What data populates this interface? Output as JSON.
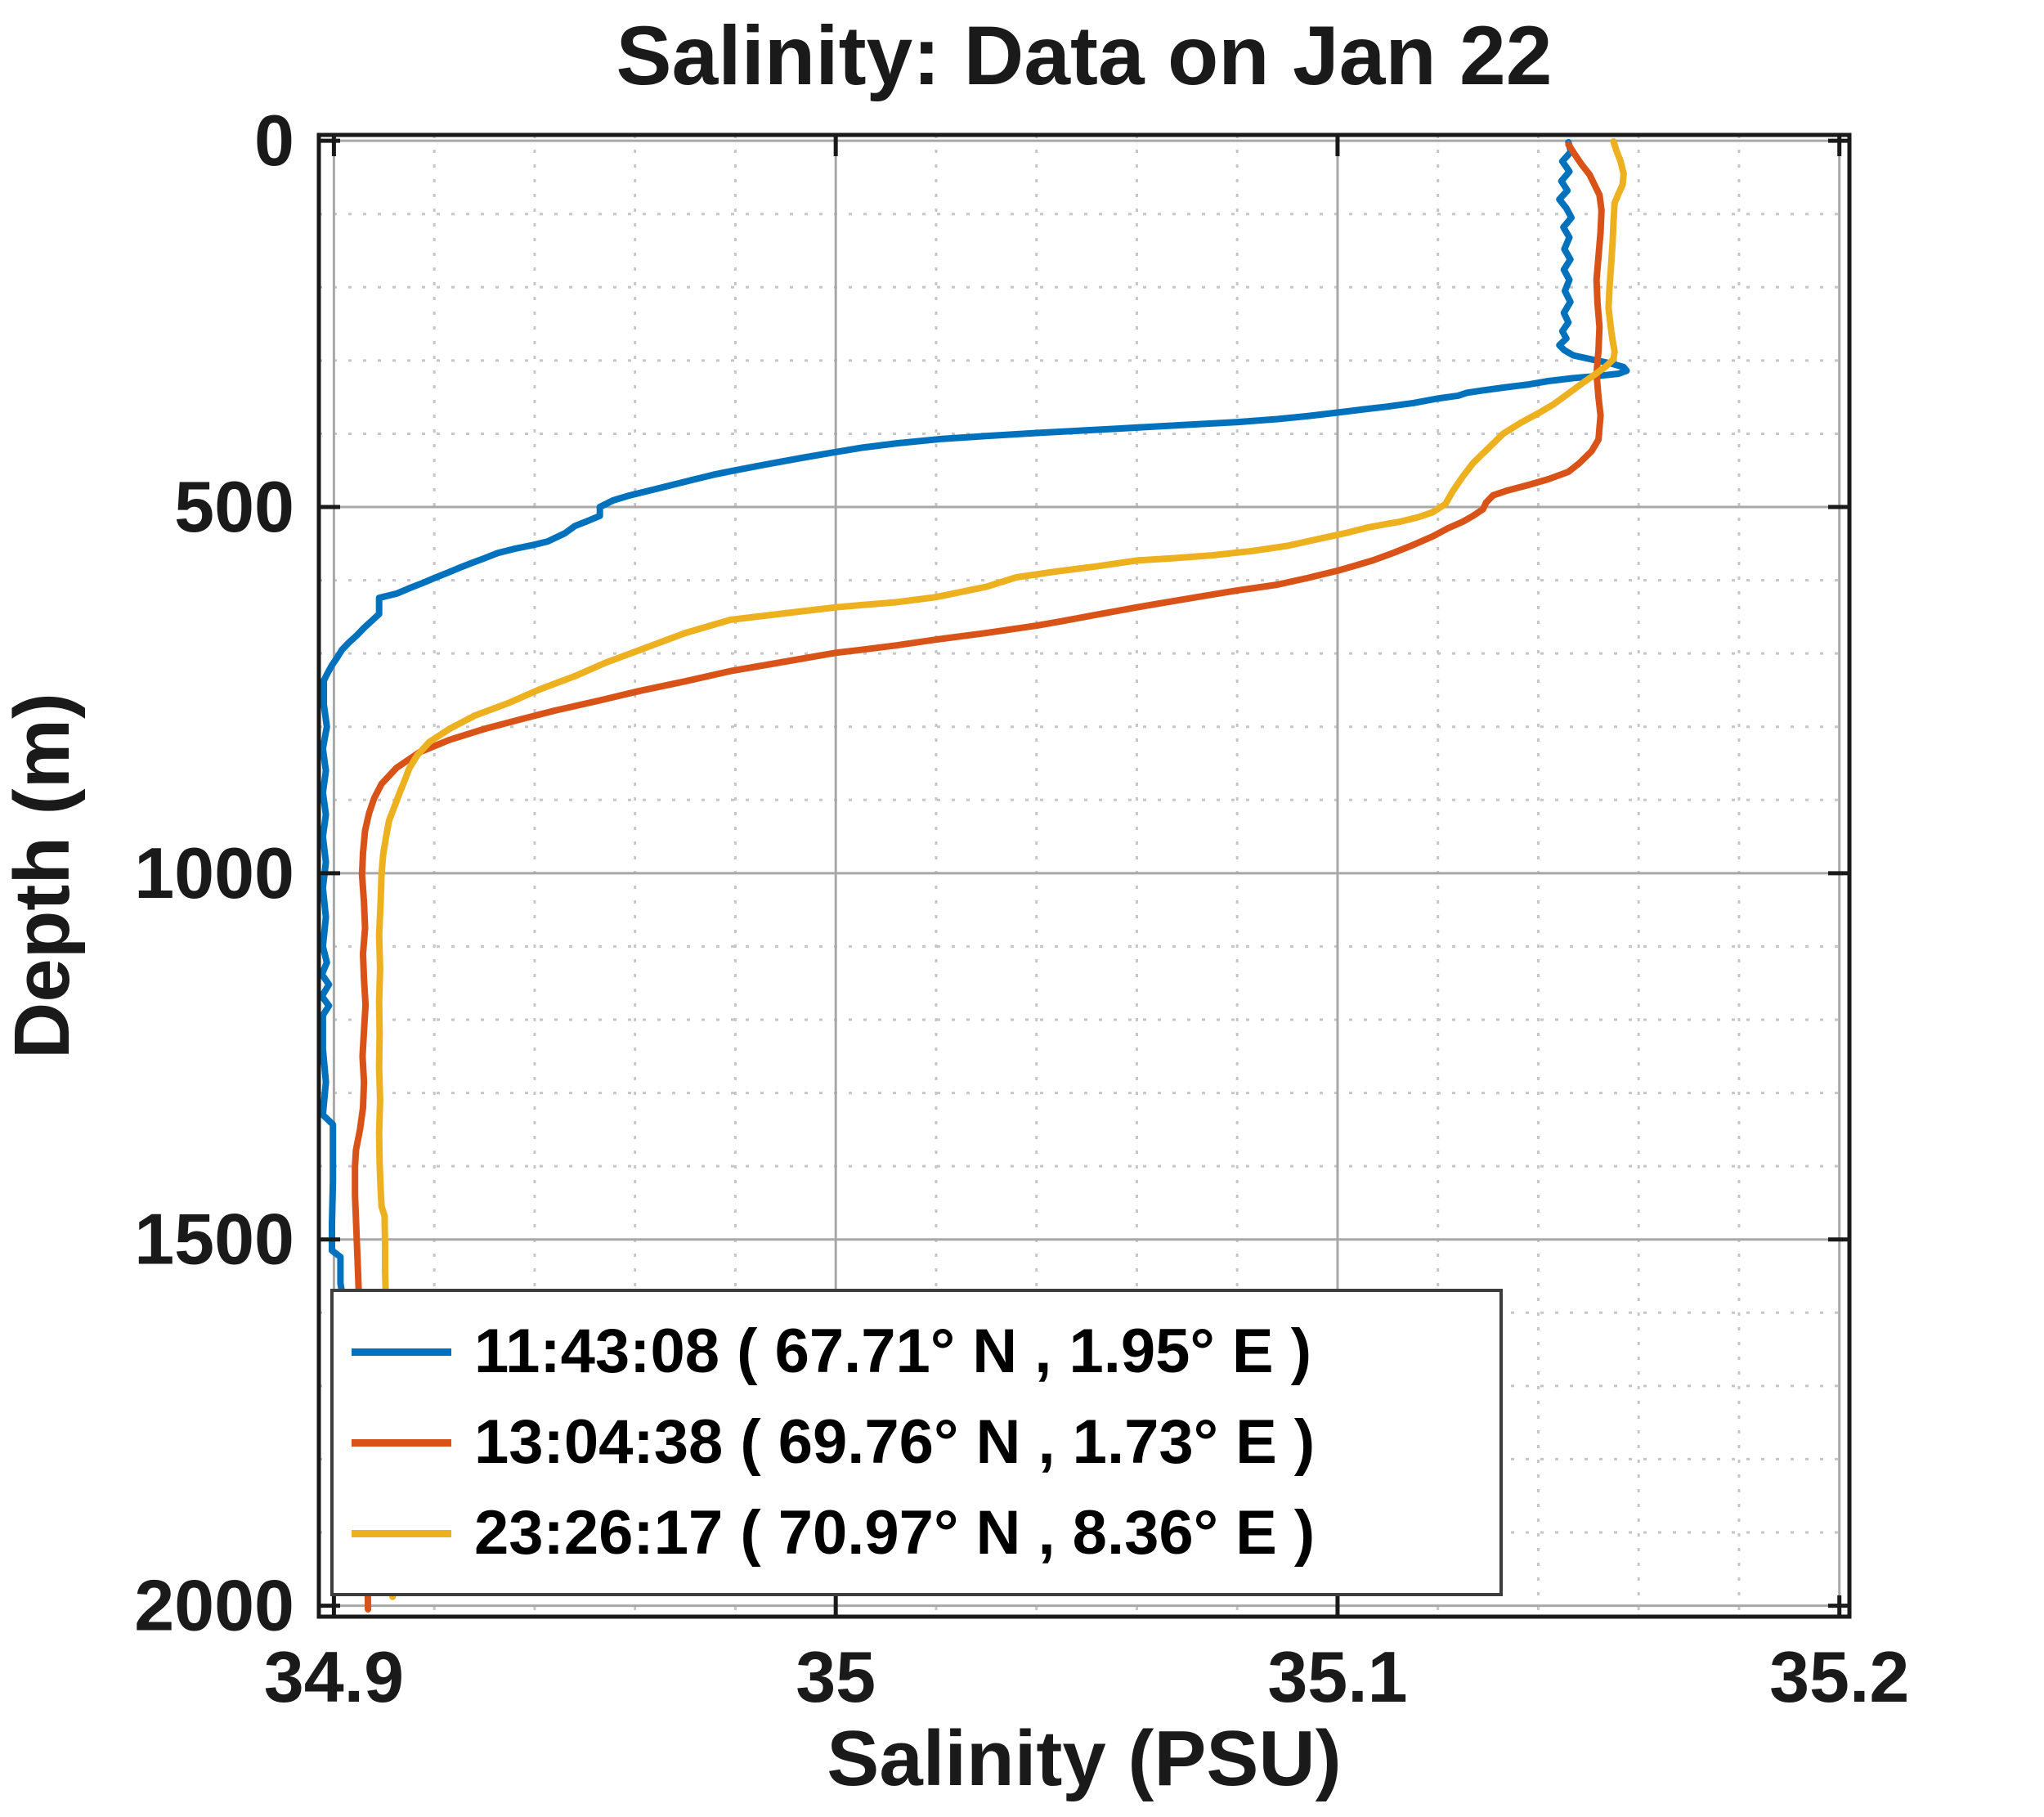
{
  "figure": {
    "title": "Salinity: Data on Jan 22",
    "xlabel": "Salinity (PSU)",
    "ylabel": "Depth (m)",
    "background": "#ffffff"
  },
  "chart_data": {
    "type": "line",
    "title": "Salinity: Data on Jan 22",
    "xlabel": "Salinity (PSU)",
    "ylabel": "Depth (m)",
    "x_ticks": [
      34.9,
      35.0,
      35.1,
      35.2
    ],
    "x_tick_labels": [
      "34.9",
      "35",
      "35.1",
      "35.2"
    ],
    "y_ticks": [
      0,
      500,
      1000,
      1500,
      2000
    ],
    "y_tick_labels": [
      "0",
      "500",
      "1000",
      "1500",
      "2000"
    ],
    "xlim": [
      34.897,
      35.202
    ],
    "ylim": [
      -8,
      2015
    ],
    "y_axis_note": "depth axis reversed: 0 at top, 2000 at bottom",
    "grid": {
      "major": "solid",
      "minor": "dotted",
      "x_minor_step": 0.02,
      "y_minor_step": 100
    },
    "legend_position": "southwest",
    "colors": {
      "axis": "#1a1a1a",
      "major_grid": "#a8a8a8",
      "minor_grid": "#c6c6c6",
      "background": "#ffffff"
    },
    "series": [
      {
        "name": "11:43:08 ( 67.71° N , 1.95° E )",
        "color": "#0072BD",
        "points": [
          [
            35.146,
            2
          ],
          [
            35.1465,
            15
          ],
          [
            35.1448,
            28
          ],
          [
            35.1462,
            42
          ],
          [
            35.1446,
            55
          ],
          [
            35.1458,
            68
          ],
          [
            35.1442,
            80
          ],
          [
            35.1456,
            92
          ],
          [
            35.1466,
            105
          ],
          [
            35.145,
            118
          ],
          [
            35.1462,
            132
          ],
          [
            35.1452,
            148
          ],
          [
            35.1464,
            162
          ],
          [
            35.1451,
            176
          ],
          [
            35.1462,
            190
          ],
          [
            35.1453,
            205
          ],
          [
            35.1464,
            220
          ],
          [
            35.1451,
            235
          ],
          [
            35.146,
            248
          ],
          [
            35.1448,
            260
          ],
          [
            35.1456,
            270
          ],
          [
            35.1442,
            279
          ],
          [
            35.1452,
            286
          ],
          [
            35.147,
            293
          ],
          [
            35.151,
            299
          ],
          [
            35.1545,
            304
          ],
          [
            35.157,
            309
          ],
          [
            35.1576,
            314
          ],
          [
            35.156,
            318
          ],
          [
            35.152,
            321
          ],
          [
            35.147,
            324
          ],
          [
            35.142,
            328
          ],
          [
            35.1378,
            333
          ],
          [
            35.133,
            337
          ],
          [
            35.1288,
            341
          ],
          [
            35.1258,
            344
          ],
          [
            35.124,
            348
          ],
          [
            35.1198,
            352
          ],
          [
            35.1152,
            358
          ],
          [
            35.1098,
            363
          ],
          [
            35.1048,
            367
          ],
          [
            35.1,
            371
          ],
          [
            35.094,
            376
          ],
          [
            35.088,
            380
          ],
          [
            35.0802,
            384
          ],
          [
            35.0722,
            387
          ],
          [
            35.064,
            390
          ],
          [
            35.056,
            393
          ],
          [
            35.048,
            396
          ],
          [
            35.04,
            399
          ],
          [
            35.0302,
            403
          ],
          [
            35.0212,
            407
          ],
          [
            35.0122,
            413
          ],
          [
            35.0052,
            419
          ],
          [
            35.0,
            425
          ],
          [
            34.9932,
            433
          ],
          [
            34.986,
            442
          ],
          [
            34.9792,
            451
          ],
          [
            34.9756,
            456
          ],
          [
            34.972,
            462
          ],
          [
            34.9662,
            472
          ],
          [
            34.962,
            479
          ],
          [
            34.959,
            484
          ],
          [
            34.9556,
            491
          ],
          [
            34.953,
            500
          ],
          [
            34.953,
            512
          ],
          [
            34.9506,
            519
          ],
          [
            34.948,
            526
          ],
          [
            34.946,
            536
          ],
          [
            34.9426,
            547
          ],
          [
            34.9396,
            552
          ],
          [
            34.936,
            557
          ],
          [
            34.9326,
            563
          ],
          [
            34.93,
            570
          ],
          [
            34.9276,
            576
          ],
          [
            34.925,
            583
          ],
          [
            34.9226,
            590
          ],
          [
            34.92,
            597
          ],
          [
            34.9176,
            604
          ],
          [
            34.915,
            611
          ],
          [
            34.9126,
            618
          ],
          [
            34.909,
            624
          ],
          [
            34.909,
            646
          ],
          [
            34.9076,
            655
          ],
          [
            34.906,
            665
          ],
          [
            34.9046,
            675
          ],
          [
            34.903,
            685
          ],
          [
            34.9016,
            695
          ],
          [
            34.9006,
            706
          ],
          [
            34.8996,
            716
          ],
          [
            34.8988,
            726
          ],
          [
            34.898,
            737
          ],
          [
            34.898,
            770
          ],
          [
            34.8986,
            800
          ],
          [
            34.8978,
            830
          ],
          [
            34.8984,
            860
          ],
          [
            34.8978,
            890
          ],
          [
            34.8984,
            920
          ],
          [
            34.8978,
            950
          ],
          [
            34.8984,
            985
          ],
          [
            34.8978,
            1020
          ],
          [
            34.8984,
            1060
          ],
          [
            34.8978,
            1100
          ],
          [
            34.8986,
            1122
          ],
          [
            34.8976,
            1138
          ],
          [
            34.899,
            1152
          ],
          [
            34.8976,
            1168
          ],
          [
            34.899,
            1181
          ],
          [
            34.8978,
            1194
          ],
          [
            34.8978,
            1240
          ],
          [
            34.8984,
            1285
          ],
          [
            34.8978,
            1330
          ],
          [
            34.8998,
            1343
          ],
          [
            34.8998,
            1420
          ],
          [
            34.8996,
            1480
          ],
          [
            34.8996,
            1515
          ],
          [
            34.9013,
            1524
          ],
          [
            34.9013,
            1560
          ],
          [
            34.9016,
            1572
          ]
        ]
      },
      {
        "name": "13:04:38 ( 69.76° N , 1.73° E )",
        "color": "#D95319",
        "points": [
          [
            35.146,
            5
          ],
          [
            35.1472,
            18
          ],
          [
            35.1486,
            32
          ],
          [
            35.1502,
            46
          ],
          [
            35.1512,
            60
          ],
          [
            35.1522,
            74
          ],
          [
            35.1526,
            95
          ],
          [
            35.1524,
            125
          ],
          [
            35.152,
            158
          ],
          [
            35.1516,
            190
          ],
          [
            35.1518,
            222
          ],
          [
            35.1522,
            254
          ],
          [
            35.152,
            286
          ],
          [
            35.1516,
            318
          ],
          [
            35.152,
            350
          ],
          [
            35.1524,
            375
          ],
          [
            35.1522,
            392
          ],
          [
            35.152,
            408
          ],
          [
            35.1506,
            424
          ],
          [
            35.1482,
            440
          ],
          [
            35.146,
            452
          ],
          [
            35.142,
            462
          ],
          [
            35.138,
            470
          ],
          [
            35.1336,
            478
          ],
          [
            35.131,
            484
          ],
          [
            35.1296,
            494
          ],
          [
            35.129,
            503
          ],
          [
            35.127,
            512
          ],
          [
            35.125,
            520
          ],
          [
            35.122,
            529
          ],
          [
            35.119,
            540
          ],
          [
            35.115,
            552
          ],
          [
            35.111,
            563
          ],
          [
            35.107,
            573
          ],
          [
            35.103,
            581
          ],
          [
            35.1,
            587
          ],
          [
            35.094,
            597
          ],
          [
            35.088,
            606
          ],
          [
            35.08,
            614
          ],
          [
            35.072,
            623
          ],
          [
            35.065,
            631
          ],
          [
            35.06,
            637
          ],
          [
            35.052,
            647
          ],
          [
            35.045,
            656
          ],
          [
            35.04,
            662
          ],
          [
            35.03,
            672
          ],
          [
            35.02,
            681
          ],
          [
            35.012,
            689
          ],
          [
            35.005,
            695
          ],
          [
            35.0,
            699
          ],
          [
            34.99,
            711
          ],
          [
            34.979,
            724
          ],
          [
            34.97,
            738
          ],
          [
            34.961,
            751
          ],
          [
            34.953,
            764
          ],
          [
            34.944,
            778
          ],
          [
            34.936,
            792
          ],
          [
            34.93,
            803
          ],
          [
            34.923,
            818
          ],
          [
            34.917,
            835
          ],
          [
            34.9125,
            856
          ],
          [
            34.9095,
            878
          ],
          [
            34.908,
            898
          ],
          [
            34.907,
            918
          ],
          [
            34.9062,
            942
          ],
          [
            34.9058,
            972
          ],
          [
            34.9056,
            1002
          ],
          [
            34.906,
            1040
          ],
          [
            34.9062,
            1075
          ],
          [
            34.9058,
            1110
          ],
          [
            34.906,
            1145
          ],
          [
            34.9063,
            1180
          ],
          [
            34.906,
            1215
          ],
          [
            34.9057,
            1250
          ],
          [
            34.906,
            1285
          ],
          [
            34.9058,
            1320
          ],
          [
            34.9052,
            1350
          ],
          [
            34.9044,
            1378
          ],
          [
            34.9042,
            1400
          ],
          [
            34.9042,
            1440
          ],
          [
            34.9045,
            1490
          ],
          [
            34.9048,
            1545
          ],
          [
            34.9052,
            1620
          ],
          [
            34.9058,
            1700
          ],
          [
            34.9062,
            1790
          ],
          [
            34.9065,
            1880
          ],
          [
            34.9067,
            1950
          ],
          [
            34.9068,
            2005
          ]
        ]
      },
      {
        "name": "23:26:17 ( 70.97° N , 8.36° E )",
        "color": "#EDB120",
        "points": [
          [
            35.155,
            1
          ],
          [
            35.1556,
            14
          ],
          [
            35.1564,
            28
          ],
          [
            35.157,
            45
          ],
          [
            35.1568,
            60
          ],
          [
            35.156,
            72
          ],
          [
            35.1552,
            85
          ],
          [
            35.155,
            110
          ],
          [
            35.1548,
            140
          ],
          [
            35.1545,
            170
          ],
          [
            35.1542,
            200
          ],
          [
            35.154,
            228
          ],
          [
            35.1544,
            252
          ],
          [
            35.1548,
            272
          ],
          [
            35.1552,
            288
          ],
          [
            35.155,
            298
          ],
          [
            35.1535,
            308
          ],
          [
            35.1515,
            318
          ],
          [
            35.149,
            330
          ],
          [
            35.146,
            345
          ],
          [
            35.143,
            360
          ],
          [
            35.14,
            372
          ],
          [
            35.1365,
            385
          ],
          [
            35.133,
            400
          ],
          [
            35.13,
            420
          ],
          [
            35.127,
            440
          ],
          [
            35.125,
            458
          ],
          [
            35.123,
            478
          ],
          [
            35.1215,
            496
          ],
          [
            35.119,
            507
          ],
          [
            35.116,
            514
          ],
          [
            35.1125,
            520
          ],
          [
            35.11,
            523
          ],
          [
            35.106,
            528
          ],
          [
            35.102,
            535
          ],
          [
            35.098,
            541
          ],
          [
            35.09,
            553
          ],
          [
            35.083,
            560
          ],
          [
            35.075,
            566
          ],
          [
            35.067,
            570
          ],
          [
            35.06,
            573
          ],
          [
            35.052,
            581
          ],
          [
            35.044,
            588
          ],
          [
            35.036,
            596
          ],
          [
            35.03,
            609
          ],
          [
            35.02,
            623
          ],
          [
            35.012,
            630
          ],
          [
            35.005,
            634
          ],
          [
            35.0,
            637
          ],
          [
            34.99,
            645
          ],
          [
            34.979,
            654
          ],
          [
            34.97,
            672
          ],
          [
            34.961,
            695
          ],
          [
            34.954,
            713
          ],
          [
            34.948,
            731
          ],
          [
            34.941,
            749
          ],
          [
            34.935,
            767
          ],
          [
            34.928,
            785
          ],
          [
            34.923,
            803
          ],
          [
            34.919,
            821
          ],
          [
            34.9166,
            839
          ],
          [
            34.915,
            857
          ],
          [
            34.914,
            875
          ],
          [
            34.913,
            892
          ],
          [
            34.912,
            910
          ],
          [
            34.911,
            928
          ],
          [
            34.9104,
            950
          ],
          [
            34.9098,
            975
          ],
          [
            34.9095,
            1000
          ],
          [
            34.9093,
            1040
          ],
          [
            34.909,
            1085
          ],
          [
            34.9092,
            1130
          ],
          [
            34.909,
            1175
          ],
          [
            34.9091,
            1220
          ],
          [
            34.909,
            1265
          ],
          [
            34.9092,
            1310
          ],
          [
            34.909,
            1355
          ],
          [
            34.9091,
            1395
          ],
          [
            34.9093,
            1430
          ],
          [
            34.9095,
            1455
          ],
          [
            34.9101,
            1468
          ],
          [
            34.9102,
            1510
          ],
          [
            34.9102,
            1545
          ],
          [
            34.9105,
            1620
          ],
          [
            34.9108,
            1700
          ],
          [
            34.9111,
            1790
          ],
          [
            34.9114,
            1880
          ],
          [
            34.9116,
            1950
          ],
          [
            34.9117,
            1988
          ]
        ]
      }
    ]
  }
}
